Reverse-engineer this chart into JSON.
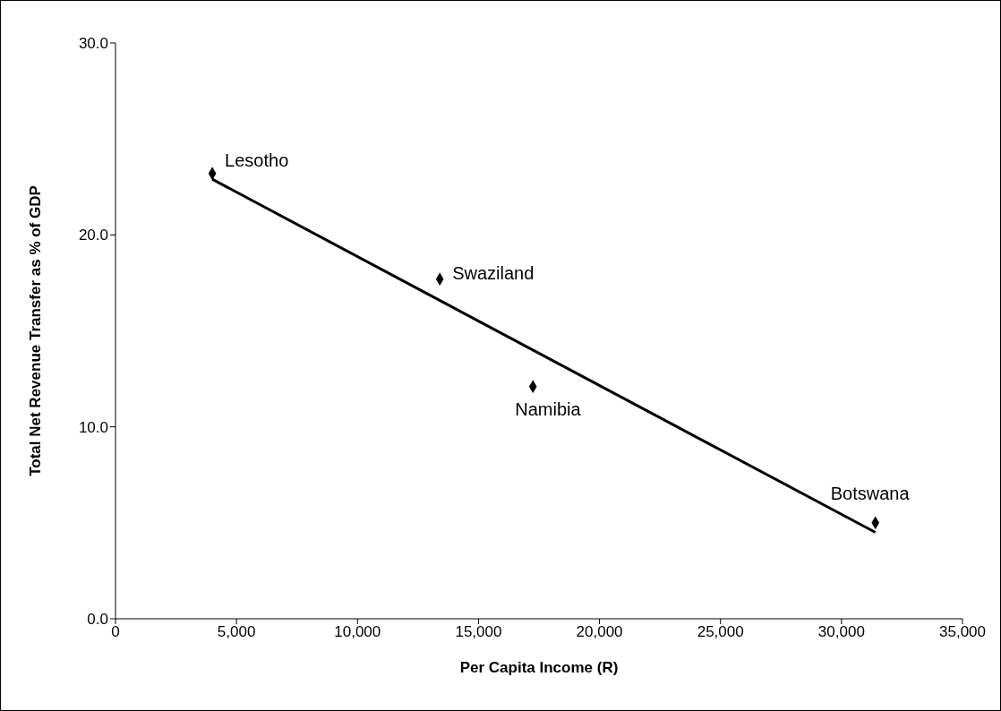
{
  "chart_data": {
    "type": "scatter",
    "xlabel": "Per Capita Income (R)",
    "ylabel": "Total Net Revenue Transfer as % of GDP",
    "xlim": [
      0,
      35000
    ],
    "xticks": [
      {
        "value": 0,
        "label": "0"
      },
      {
        "value": 5000,
        "label": "5,000"
      },
      {
        "value": 10000,
        "label": "10,000"
      },
      {
        "value": 15000,
        "label": "15,000"
      },
      {
        "value": 20000,
        "label": "20,000"
      },
      {
        "value": 25000,
        "label": "25,000"
      },
      {
        "value": 30000,
        "label": "30,000"
      },
      {
        "value": 35000,
        "label": "35,000"
      }
    ],
    "ylim": [
      0,
      30
    ],
    "yticks": [
      {
        "value": 0,
        "label": "0.0"
      },
      {
        "value": 10,
        "label": "10.0"
      },
      {
        "value": 20,
        "label": "20.0"
      },
      {
        "value": 30,
        "label": "30.0"
      }
    ],
    "grid": false,
    "marker": "diamond",
    "series": [
      {
        "color": "#000000",
        "x": [
          4000,
          13400,
          17250,
          31400
        ],
        "values": [
          23.2,
          17.7,
          12.1,
          5.0
        ]
      },
      {
        "type": "line",
        "color": "#000000",
        "line_style": "solid",
        "marker": "none",
        "x": [
          4000,
          31400
        ],
        "values": [
          22.9,
          4.5
        ]
      }
    ],
    "annotations": [
      {
        "text": "Lesotho",
        "x": 4000,
        "y": 23.2
      },
      {
        "text": "Swaziland",
        "x": 13400,
        "y": 17.7
      },
      {
        "text": "Namibia",
        "x": 17250,
        "y": 12.1
      },
      {
        "text": "Botswana",
        "x": 31400,
        "y": 5.0
      }
    ]
  }
}
